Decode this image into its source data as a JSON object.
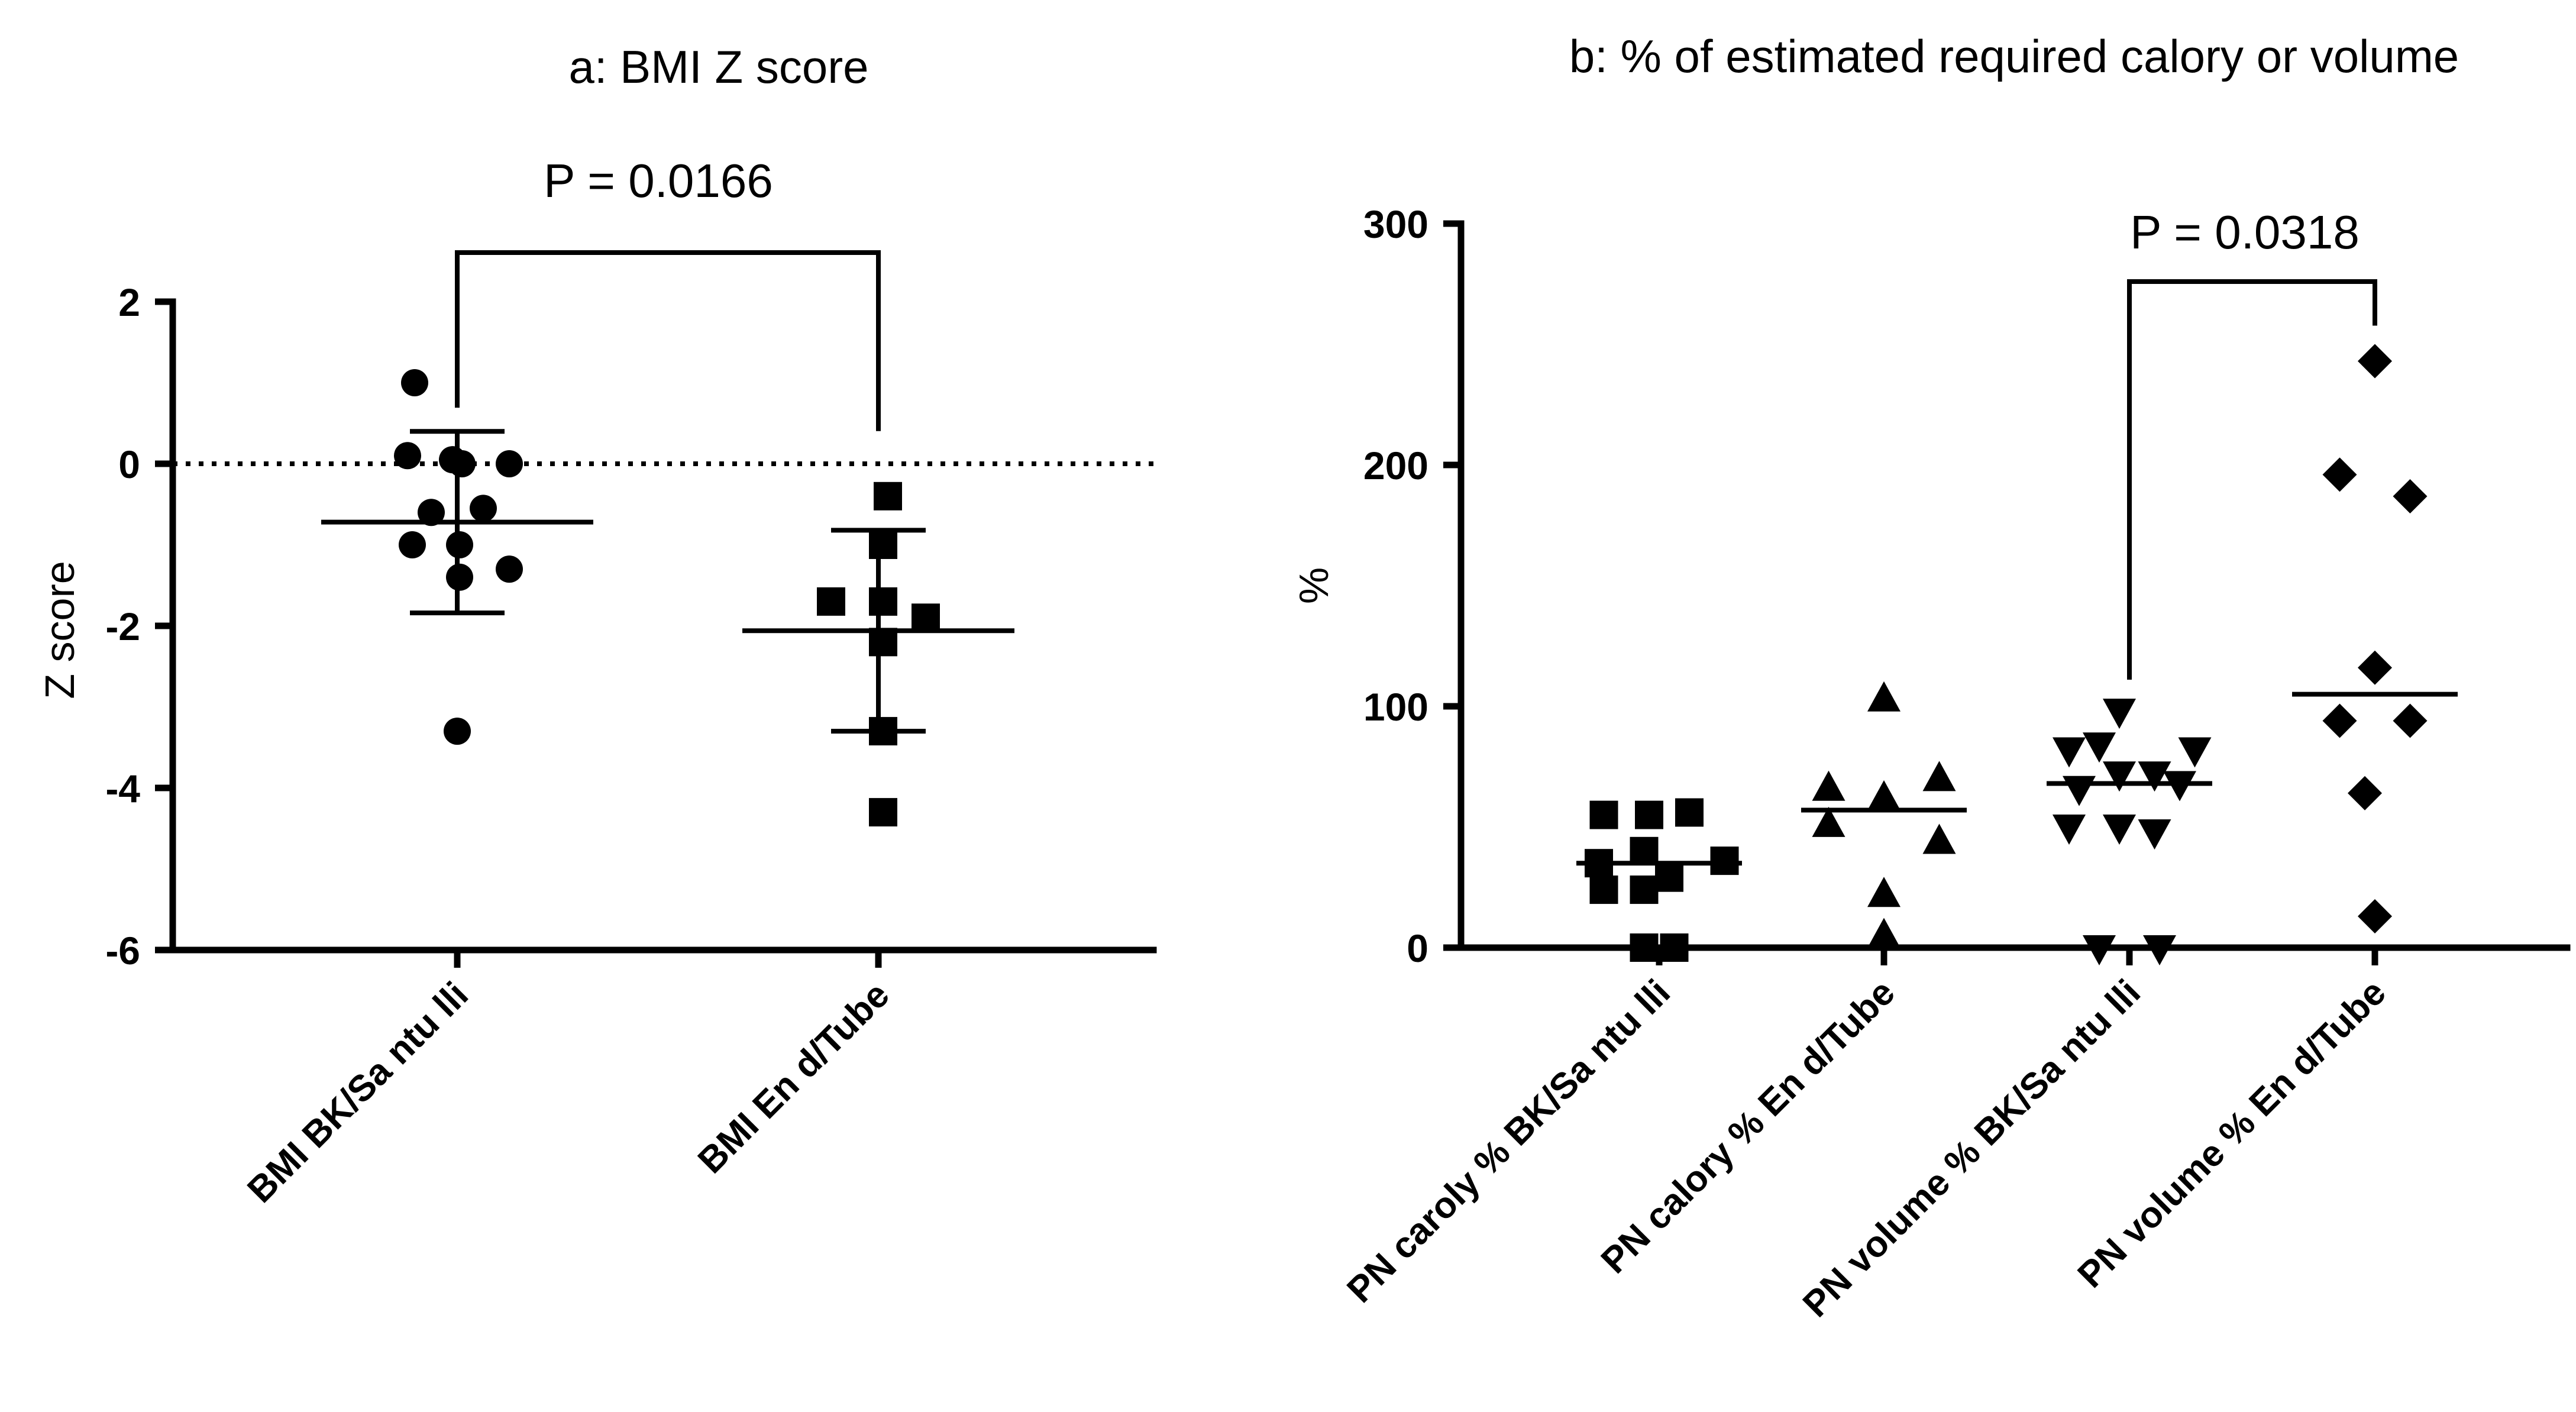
{
  "chart_data": [
    {
      "type": "scatter",
      "title": "a: BMI Z score",
      "ylabel": "Z score",
      "xlabel": "",
      "ylim": [
        -6,
        2
      ],
      "yticks": [
        2,
        0,
        -2,
        -4,
        -6
      ],
      "ytick_labels": [
        "2",
        "0",
        "-2",
        "-4",
        "-6"
      ],
      "reference_line": 0,
      "categories": [
        "BMI BK/Santulli",
        "BMI End/Tube"
      ],
      "xtick_labels": [
        "BMI  BK/Sa ntu lli",
        "BMI  En d/Tube"
      ],
      "series": [
        {
          "name": "BMI BK/Santulli",
          "marker": "circle",
          "values": [
            1.0,
            0.1,
            0.05,
            0.0,
            0.0,
            -0.55,
            -0.6,
            -1.0,
            -1.0,
            -1.3,
            -1.4,
            -3.3
          ],
          "jitter": [
            -0.9,
            -1.05,
            -0.1,
            0.1,
            1.1,
            0.55,
            -0.55,
            -0.95,
            0.05,
            1.1,
            0.05,
            0.0
          ],
          "mean": -0.72,
          "sd_upper": 0.4,
          "sd_lower": -1.84
        },
        {
          "name": "BMI End/Tube",
          "marker": "square",
          "values": [
            -0.4,
            -1.0,
            -1.7,
            -1.7,
            -1.9,
            -2.2,
            -3.3,
            -4.3
          ],
          "jitter": [
            0.2,
            0.1,
            -1.0,
            0.1,
            1.0,
            0.1,
            0.1,
            0.1
          ],
          "mean": -2.06,
          "sd_upper": -0.82,
          "sd_lower": -3.3
        }
      ],
      "comparison": {
        "from": 0,
        "to": 1,
        "label": "P = 0.0166"
      }
    },
    {
      "type": "scatter",
      "title": "b: % of estimated required calory or volume",
      "ylabel": "%",
      "xlabel": "",
      "ylim": [
        0,
        300
      ],
      "yticks": [
        300,
        200,
        100,
        0
      ],
      "ytick_labels": [
        "300",
        "200",
        "100",
        "0"
      ],
      "categories": [
        "PN caroly % BK/Santulli",
        "PN calory % End/Tube",
        "PN volume % BK/Santulli",
        "PN volume % End/Tube"
      ],
      "xtick_labels": [
        "PN  caroly % BK/Sa ntu lli",
        "PN  calory % En d/Tube",
        "PN  volume % BK/Sa ntu lli",
        "PN  volume % En d/Tube"
      ],
      "series": [
        {
          "name": "PN caroly % BK/Santulli",
          "marker": "square",
          "values": [
            55,
            55,
            56,
            40,
            36,
            35,
            29,
            24,
            24,
            0,
            0
          ],
          "jitter": [
            -1.1,
            -0.2,
            0.6,
            -0.3,
            1.3,
            -1.2,
            0.2,
            -1.1,
            -0.3,
            -0.3,
            0.3
          ],
          "median": 35
        },
        {
          "name": "PN calory % End/Tube",
          "marker": "triangle-up",
          "values": [
            103,
            70,
            66,
            62,
            51,
            44,
            22,
            5
          ],
          "jitter": [
            0.0,
            1.1,
            -1.1,
            0.0,
            -1.1,
            1.1,
            0.0,
            0.0
          ],
          "median": 57
        },
        {
          "name": "PN volume % BK/Santulli",
          "marker": "triangle-down",
          "values": [
            98,
            82,
            82,
            84,
            72,
            72,
            68,
            66,
            50,
            50,
            48,
            0,
            0
          ],
          "jitter": [
            -0.2,
            -1.2,
            1.3,
            -0.6,
            -0.2,
            0.5,
            1.0,
            -1.0,
            -1.2,
            -0.2,
            0.5,
            -0.6,
            0.6
          ],
          "median": 68
        },
        {
          "name": "PN volume % End/Tube",
          "marker": "diamond",
          "values": [
            243,
            196,
            187,
            116,
            94,
            94,
            64,
            13
          ],
          "jitter": [
            0.0,
            -0.7,
            0.7,
            0.0,
            -0.7,
            0.7,
            -0.2,
            0.0
          ],
          "median": 105
        }
      ],
      "comparison": {
        "from": 2,
        "to": 3,
        "label": "P = 0.0318"
      }
    }
  ]
}
